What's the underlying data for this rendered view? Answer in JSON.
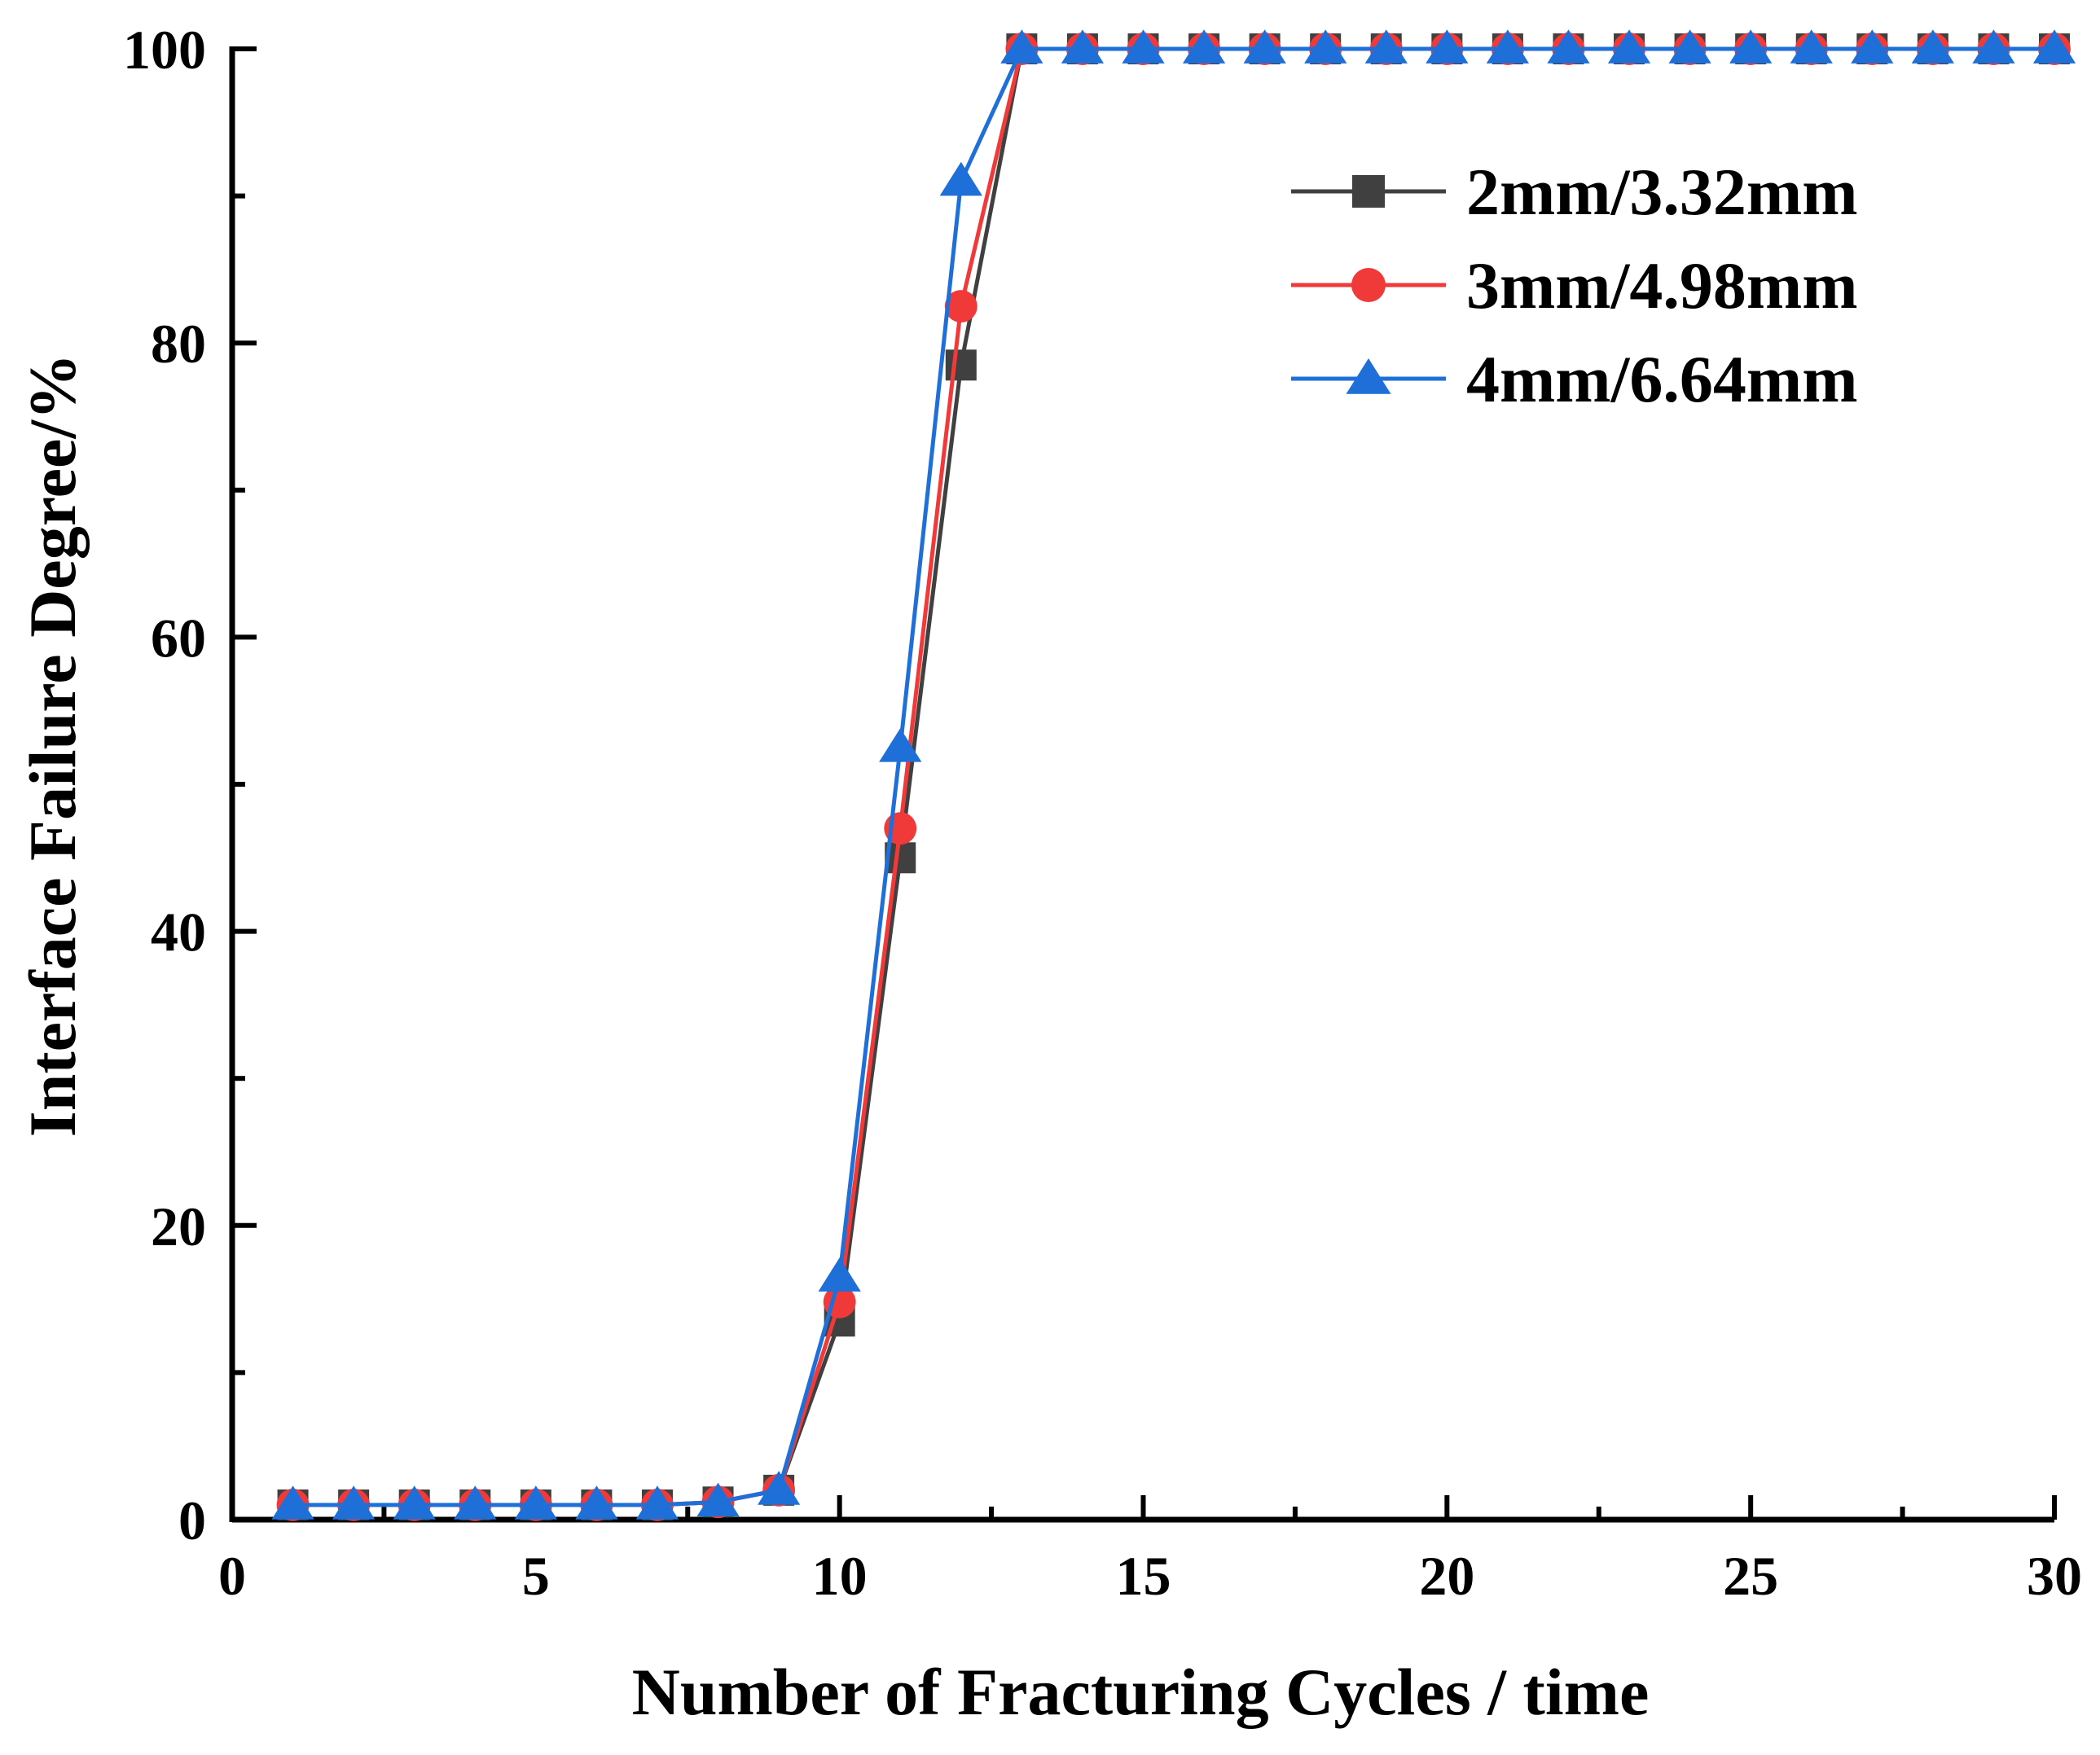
{
  "chart_data": {
    "type": "line",
    "title": "",
    "xlabel": "Number of Fracturing Cycles / time",
    "ylabel": "Interface Failure Degree/%",
    "xlim": [
      0,
      30
    ],
    "ylim": [
      0,
      100
    ],
    "x_ticks": [
      0,
      5,
      10,
      15,
      20,
      25,
      30
    ],
    "x_tick_labels": [
      "0",
      "5",
      "10",
      "15",
      "20",
      "25",
      "30"
    ],
    "y_ticks": [
      0,
      20,
      40,
      60,
      80,
      100
    ],
    "y_tick_labels": [
      "0",
      "20",
      "40",
      "60",
      "80",
      "100"
    ],
    "grid": false,
    "legend_position": "top-right",
    "x": [
      1,
      2,
      3,
      4,
      5,
      6,
      7,
      8,
      9,
      10,
      11,
      12,
      13,
      14,
      15,
      16,
      17,
      18,
      19,
      20,
      21,
      22,
      23,
      24,
      25,
      26,
      27,
      28,
      29,
      30
    ],
    "series": [
      {
        "name": "2mm/3.32mm",
        "marker": "square",
        "color": "#404040",
        "values": [
          1,
          1,
          1,
          1,
          1,
          1,
          1,
          1.2,
          2,
          13.5,
          45,
          78.5,
          100,
          100,
          100,
          100,
          100,
          100,
          100,
          100,
          100,
          100,
          100,
          100,
          100,
          100,
          100,
          100,
          100,
          100
        ]
      },
      {
        "name": "3mm/4.98mm",
        "marker": "circle",
        "color": "#f03a3a",
        "values": [
          1,
          1,
          1,
          1,
          1,
          1,
          1,
          1.2,
          2,
          14.8,
          47,
          82.5,
          100,
          100,
          100,
          100,
          100,
          100,
          100,
          100,
          100,
          100,
          100,
          100,
          100,
          100,
          100,
          100,
          100,
          100
        ]
      },
      {
        "name": "4mm/6.64mm",
        "marker": "triangle",
        "color": "#1f6fd8",
        "values": [
          1,
          1,
          1,
          1,
          1,
          1,
          1,
          1.2,
          2,
          16.5,
          52.5,
          91,
          100,
          100,
          100,
          100,
          100,
          100,
          100,
          100,
          100,
          100,
          100,
          100,
          100,
          100,
          100,
          100,
          100,
          100
        ]
      }
    ]
  }
}
